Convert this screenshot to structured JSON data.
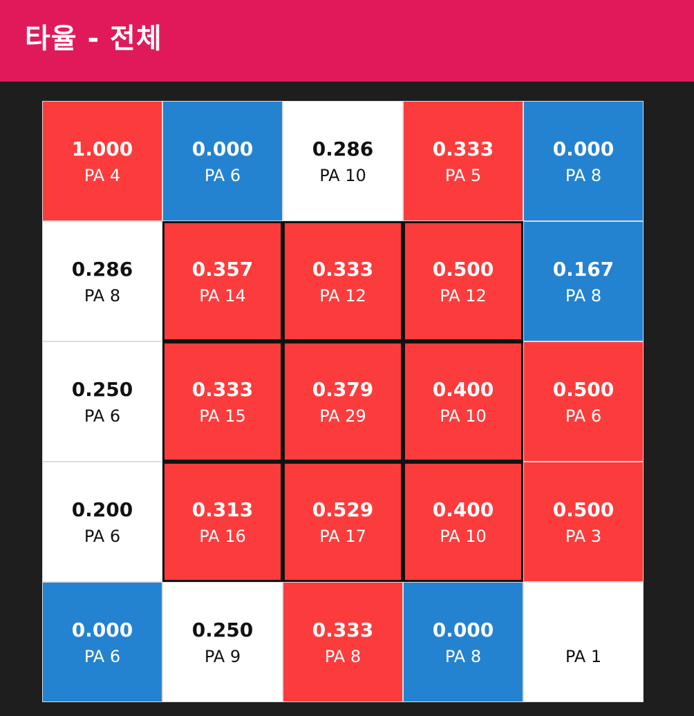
{
  "header": {
    "title": "타율 - 전체"
  },
  "colors": {
    "header_bg": "#e01a5a",
    "page_bg": "#1e1e1e",
    "hot": "#fc3c3c",
    "cold": "#2383d1",
    "neutral": "#ffffff",
    "light_text": "#ffffff",
    "dark_text": "#111111"
  },
  "chart_data": {
    "type": "heatmap",
    "title": "타율 - 전체",
    "rows": 5,
    "cols": 5,
    "strike_zone": {
      "rows": [
        1,
        3
      ],
      "cols": [
        1,
        3
      ]
    },
    "cells": [
      [
        {
          "avg": "1.000",
          "pa": "PA 4",
          "color": "hot"
        },
        {
          "avg": "0.000",
          "pa": "PA 6",
          "color": "cold"
        },
        {
          "avg": "0.286",
          "pa": "PA 10",
          "color": "neutral"
        },
        {
          "avg": "0.333",
          "pa": "PA 5",
          "color": "hot"
        },
        {
          "avg": "0.000",
          "pa": "PA 8",
          "color": "cold"
        }
      ],
      [
        {
          "avg": "0.286",
          "pa": "PA 8",
          "color": "neutral"
        },
        {
          "avg": "0.357",
          "pa": "PA 14",
          "color": "hot"
        },
        {
          "avg": "0.333",
          "pa": "PA 12",
          "color": "hot"
        },
        {
          "avg": "0.500",
          "pa": "PA 12",
          "color": "hot"
        },
        {
          "avg": "0.167",
          "pa": "PA 8",
          "color": "cold"
        }
      ],
      [
        {
          "avg": "0.250",
          "pa": "PA 6",
          "color": "neutral"
        },
        {
          "avg": "0.333",
          "pa": "PA 15",
          "color": "hot"
        },
        {
          "avg": "0.379",
          "pa": "PA 29",
          "color": "hot"
        },
        {
          "avg": "0.400",
          "pa": "PA 10",
          "color": "hot"
        },
        {
          "avg": "0.500",
          "pa": "PA 6",
          "color": "hot"
        }
      ],
      [
        {
          "avg": "0.200",
          "pa": "PA 6",
          "color": "neutral"
        },
        {
          "avg": "0.313",
          "pa": "PA 16",
          "color": "hot"
        },
        {
          "avg": "0.529",
          "pa": "PA 17",
          "color": "hot"
        },
        {
          "avg": "0.400",
          "pa": "PA 10",
          "color": "hot"
        },
        {
          "avg": "0.500",
          "pa": "PA 3",
          "color": "hot"
        }
      ],
      [
        {
          "avg": "0.000",
          "pa": "PA 6",
          "color": "cold"
        },
        {
          "avg": "0.250",
          "pa": "PA 9",
          "color": "neutral"
        },
        {
          "avg": "0.333",
          "pa": "PA 8",
          "color": "hot"
        },
        {
          "avg": "0.000",
          "pa": "PA 8",
          "color": "cold"
        },
        {
          "avg": "",
          "pa": "PA 1",
          "color": "neutral"
        }
      ]
    ]
  }
}
